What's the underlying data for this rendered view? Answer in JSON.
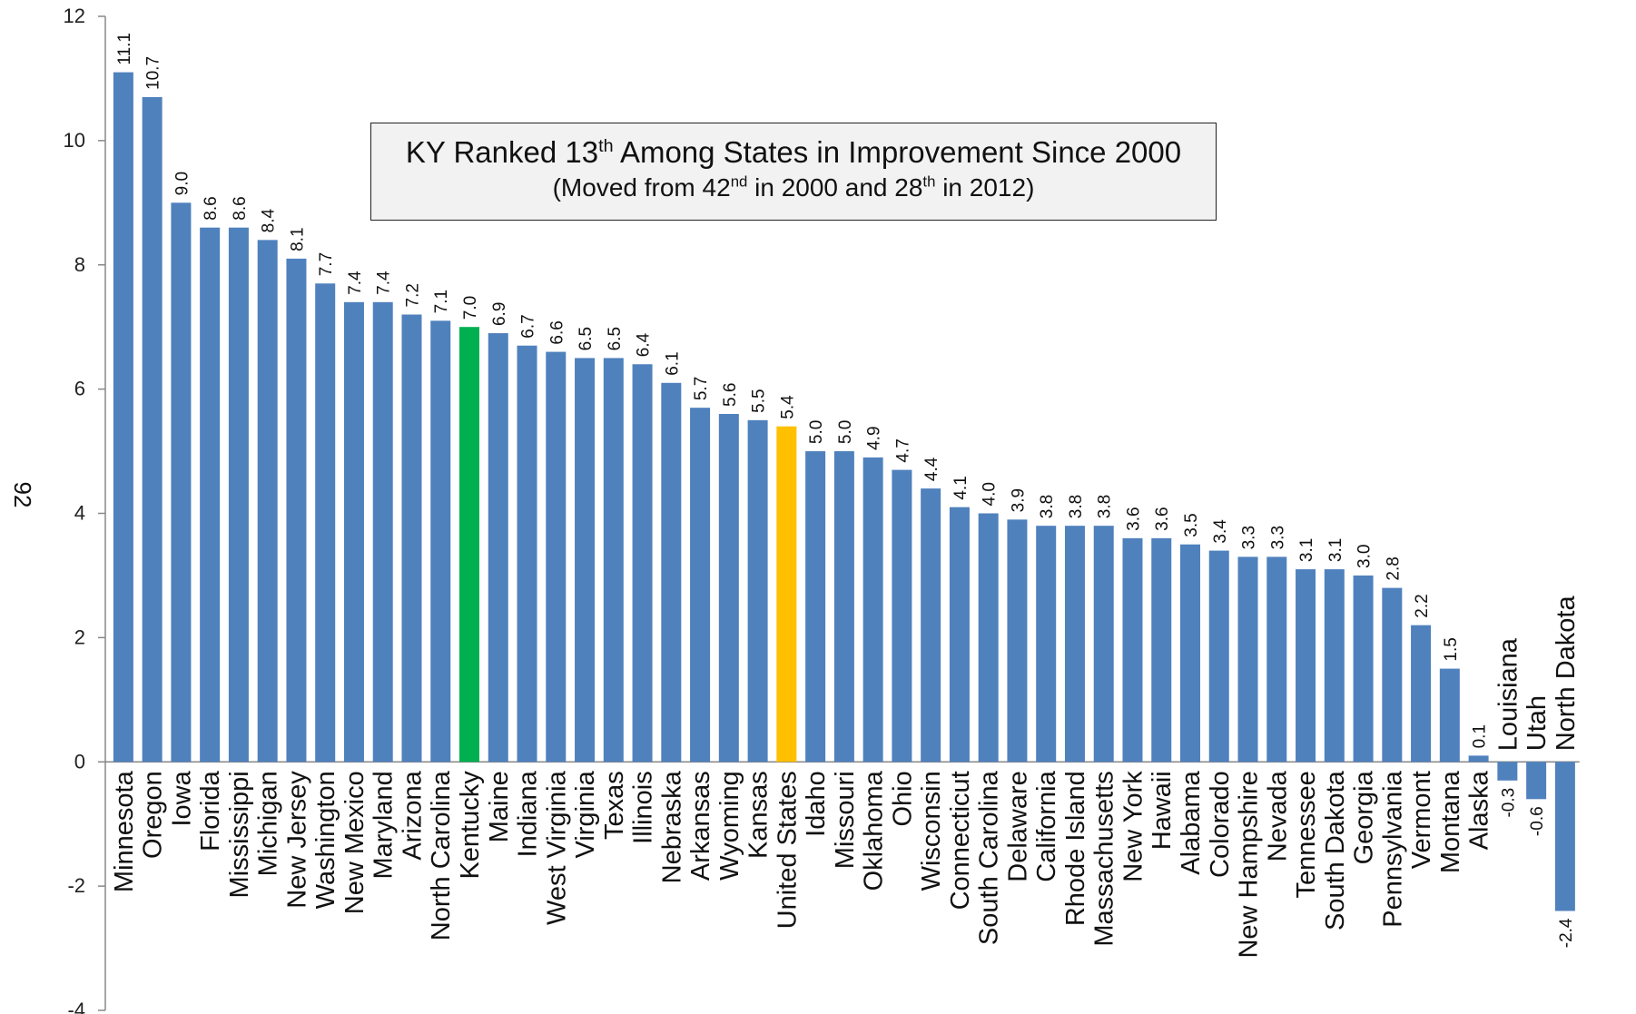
{
  "chart_data": {
    "type": "bar",
    "ylabel": "92",
    "ylim": [
      -4,
      12
    ],
    "yticks": [
      -4,
      -2,
      0,
      2,
      4,
      6,
      8,
      10,
      12
    ],
    "grid": false,
    "categories": [
      "Minnesota",
      "Oregon",
      "Iowa",
      "Florida",
      "Mississippi",
      "Michigan",
      "New Jersey",
      "Washington",
      "New Mexico",
      "Maryland",
      "Arizona",
      "North Carolina",
      "Kentucky",
      "Maine",
      "Indiana",
      "West Virginia",
      "Virginia",
      "Texas",
      "Illinois",
      "Nebraska",
      "Arkansas",
      "Wyoming",
      "Kansas",
      "United States",
      "Idaho",
      "Missouri",
      "Oklahoma",
      "Ohio",
      "Wisconsin",
      "Connecticut",
      "South Carolina",
      "Delaware",
      "California",
      "Rhode Island",
      "Massachusetts",
      "New York",
      "Hawaii",
      "Alabama",
      "Colorado",
      "New Hampshire",
      "Nevada",
      "Tennessee",
      "South Dakota",
      "Georgia",
      "Pennsylvania",
      "Vermont",
      "Montana",
      "Alaska",
      "Louisiana",
      "Utah",
      "North Dakota"
    ],
    "values": [
      11.1,
      10.7,
      9.0,
      8.6,
      8.6,
      8.4,
      8.1,
      7.7,
      7.4,
      7.4,
      7.2,
      7.1,
      7.0,
      6.9,
      6.7,
      6.6,
      6.5,
      6.5,
      6.4,
      6.1,
      5.7,
      5.6,
      5.5,
      5.4,
      5.0,
      5.0,
      4.9,
      4.7,
      4.4,
      4.1,
      4.0,
      3.9,
      3.8,
      3.8,
      3.8,
      3.6,
      3.6,
      3.5,
      3.4,
      3.3,
      3.3,
      3.1,
      3.1,
      3.0,
      2.8,
      2.2,
      1.5,
      0.1,
      -0.3,
      -0.6,
      -2.4
    ],
    "value_labels": [
      "11.1",
      "10.7",
      "9.0",
      "8.6",
      "8.6",
      "8.4",
      "8.1",
      "7.7",
      "7.4",
      "7.4",
      "7.2",
      "7.1",
      "7.0",
      "6.9",
      "6.7",
      "6.6",
      "6.5",
      "6.5",
      "6.4",
      "6.1",
      "5.7",
      "5.6",
      "5.5",
      "5.4",
      "5.0",
      "5.0",
      "4.9",
      "4.7",
      "4.4",
      "4.1",
      "4.0",
      "3.9",
      "3.8",
      "3.8",
      "3.8",
      "3.6",
      "3.6",
      "3.5",
      "3.4",
      "3.3",
      "3.3",
      "3.1",
      "3.1",
      "3.0",
      "2.8",
      "2.2",
      "1.5",
      "0.1",
      "-0.3",
      "-0.6",
      "-2.4"
    ],
    "colors": {
      "default": "#4f81bd",
      "Kentucky": "#00b050",
      "United States": "#ffc000"
    },
    "annotation": {
      "line1": {
        "a": "KY Ranked 13",
        "sup": "th",
        "b": " Among States in Improvement Since 2000"
      },
      "line2": {
        "a": "(Moved from 42",
        "sup1": "nd",
        "b": " in 2000 and 28",
        "sup2": "th",
        "c": " in 2012)"
      }
    }
  }
}
